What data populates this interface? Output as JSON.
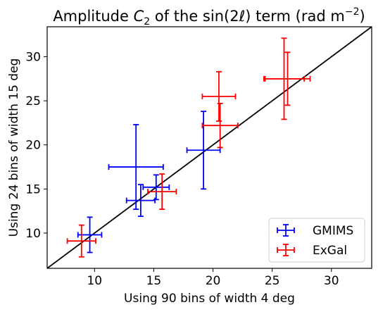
{
  "chart_data": {
    "type": "scatter",
    "title": "Amplitude C2 of the sin(2ℓ) term (rad m−2)",
    "title_parts": {
      "prefix": "Amplitude ",
      "var_letter": "C",
      "var_sub": "2",
      "middle": " of the sin(2",
      "ell": "ℓ",
      "after": ") term (rad m",
      "exp": "−2",
      "close": ")"
    },
    "xlabel": "Using 90 bins of width  4 deg",
    "ylabel": "Using 24 bins of width 15 deg",
    "xlim": [
      6.0,
      33.4
    ],
    "ylim": [
      6.0,
      33.4
    ],
    "xticks": [
      10,
      15,
      20,
      25,
      30
    ],
    "yticks": [
      10,
      15,
      20,
      25,
      30
    ],
    "identity_line": true,
    "legend_position": "bottom-right",
    "series": [
      {
        "name": "GMIMS",
        "color": "#0000ff",
        "points": [
          {
            "x": 9.6,
            "y": 9.8,
            "xerr": 1.0,
            "yerr": 2.0
          },
          {
            "x": 13.5,
            "y": 17.5,
            "xerr": 2.3,
            "yerr": 4.8
          },
          {
            "x": 13.9,
            "y": 13.7,
            "xerr": 1.2,
            "yerr": 1.8
          },
          {
            "x": 15.2,
            "y": 15.2,
            "xerr": 1.1,
            "yerr": 1.4
          },
          {
            "x": 19.2,
            "y": 19.4,
            "xerr": 1.4,
            "yerr": 4.4
          }
        ]
      },
      {
        "name": "ExGal",
        "color": "#ff0000",
        "points": [
          {
            "x": 8.9,
            "y": 9.1,
            "xerr": 1.2,
            "yerr": 1.8
          },
          {
            "x": 15.7,
            "y": 14.7,
            "xerr": 1.2,
            "yerr": 2.0
          },
          {
            "x": 20.6,
            "y": 22.2,
            "xerr": 1.5,
            "yerr": 2.5
          },
          {
            "x": 20.5,
            "y": 25.5,
            "xerr": 1.4,
            "yerr": 2.8
          },
          {
            "x": 26.0,
            "y": 27.5,
            "xerr": 1.7,
            "yerr": 4.6
          },
          {
            "x": 26.3,
            "y": 27.5,
            "xerr": 1.9,
            "yerr": 3.0
          }
        ]
      }
    ]
  }
}
